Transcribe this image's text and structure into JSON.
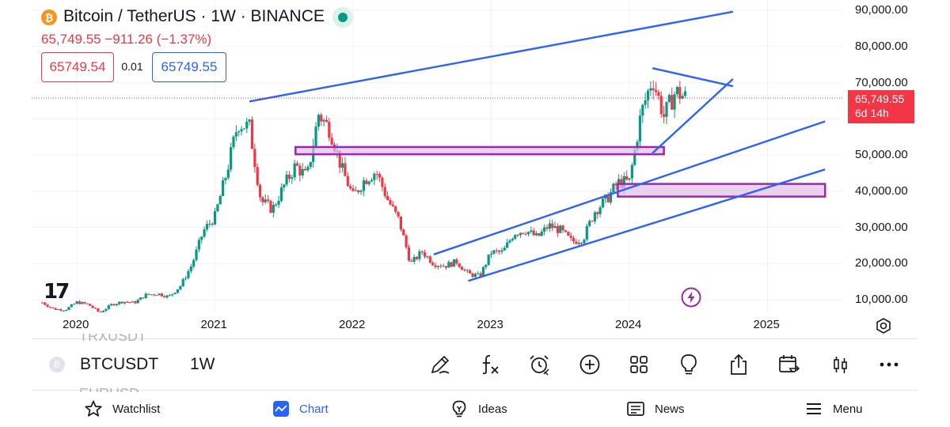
{
  "header": {
    "title": "Bitcoin / TetherUS · 1W · BINANCE",
    "price_change": "65,749.55  −911.26 (−1.37%)",
    "bid": "65749.54",
    "spread": "0.01",
    "ask": "65749.55"
  },
  "colors": {
    "up": "#089981",
    "down": "#f23645",
    "drawing": "#2962ff",
    "zone": "#9c27b0",
    "zone_fill": "#e1bee7",
    "accent": "#2962ff"
  },
  "last_price": {
    "price": "65,749.55",
    "countdown": "6d 14h"
  },
  "branding": {
    "logo": "17"
  },
  "chart_data": {
    "type": "candlestick",
    "symbol": "BTCUSDT",
    "interval": "1W",
    "y_ticks": [
      "90,000.00",
      "80,000.00",
      "70,000.00",
      "60,000.00",
      "50,000.00",
      "40,000.00",
      "30,000.00",
      "20,000.00",
      "10,000.00"
    ],
    "x_ticks": [
      "2020",
      "2021",
      "2022",
      "2023",
      "2024",
      "2025"
    ],
    "ylim": [
      6500,
      92000
    ],
    "close_series": [
      [
        "2019-10",
        9200
      ],
      [
        "2019-11",
        7400
      ],
      [
        "2019-12",
        7200
      ],
      [
        "2020-01",
        9300
      ],
      [
        "2020-02",
        8700
      ],
      [
        "2020-03",
        6400
      ],
      [
        "2020-04",
        8600
      ],
      [
        "2020-05",
        9500
      ],
      [
        "2020-06",
        9150
      ],
      [
        "2020-07",
        11300
      ],
      [
        "2020-08",
        11700
      ],
      [
        "2020-09",
        10800
      ],
      [
        "2020-10",
        13800
      ],
      [
        "2020-11",
        19700
      ],
      [
        "2020-12",
        29000
      ],
      [
        "2021-01",
        33000
      ],
      [
        "2021-02",
        45000
      ],
      [
        "2021-03",
        58800
      ],
      [
        "2021-04",
        57700
      ],
      [
        "2021-05",
        37300
      ],
      [
        "2021-06",
        35000
      ],
      [
        "2021-07",
        41500
      ],
      [
        "2021-08",
        47100
      ],
      [
        "2021-09",
        43800
      ],
      [
        "2021-10",
        61300
      ],
      [
        "2021-11",
        57000
      ],
      [
        "2021-12",
        46300
      ],
      [
        "2022-01",
        38500
      ],
      [
        "2022-02",
        43200
      ],
      [
        "2022-03",
        45500
      ],
      [
        "2022-04",
        37700
      ],
      [
        "2022-05",
        31800
      ],
      [
        "2022-06",
        19900
      ],
      [
        "2022-07",
        23300
      ],
      [
        "2022-08",
        20000
      ],
      [
        "2022-09",
        19400
      ],
      [
        "2022-10",
        20500
      ],
      [
        "2022-11",
        17100
      ],
      [
        "2022-12",
        16500
      ],
      [
        "2023-01",
        23100
      ],
      [
        "2023-02",
        23100
      ],
      [
        "2023-03",
        28500
      ],
      [
        "2023-04",
        29200
      ],
      [
        "2023-05",
        27200
      ],
      [
        "2023-06",
        30500
      ],
      [
        "2023-07",
        29200
      ],
      [
        "2023-08",
        26000
      ],
      [
        "2023-09",
        27000
      ],
      [
        "2023-10",
        34500
      ],
      [
        "2023-11",
        37700
      ],
      [
        "2023-12",
        42300
      ],
      [
        "2024-01",
        42600
      ],
      [
        "2024-02",
        61200
      ],
      [
        "2024-03",
        71300
      ],
      [
        "2024-04",
        60700
      ],
      [
        "2024-05",
        67500
      ],
      [
        "2024-06",
        65750
      ]
    ],
    "drawings": {
      "lines": [
        {
          "name": "upper-resistance-line",
          "from": [
            "2021-04",
            64800
          ],
          "to": [
            "2024-10",
            89600
          ]
        },
        {
          "name": "triangle-top-line",
          "from": [
            "2024-03",
            74000
          ],
          "to": [
            "2024-10",
            69000
          ]
        },
        {
          "name": "triangle-bottom-line",
          "from": [
            "2024-03",
            50500
          ],
          "to": [
            "2024-10",
            71000
          ]
        },
        {
          "name": "channel-upper-line",
          "from": [
            "2022-08",
            22500
          ],
          "to": [
            "2025-06",
            59300
          ]
        },
        {
          "name": "channel-lower-line",
          "from": [
            "2022-11",
            15200
          ],
          "to": [
            "2025-06",
            46000
          ]
        }
      ],
      "zones": [
        {
          "name": "resistance-zone",
          "from": "2021-08",
          "to": "2024-04",
          "low": 50200,
          "high": 52200
        },
        {
          "name": "support-zone",
          "from": "2023-12",
          "to": "2025-06",
          "low": 38500,
          "high": 42000
        }
      ],
      "last_price_line": 65749.55
    }
  },
  "bottom_toolbar": {
    "symbol": "BTCUSDT",
    "timeframe": "1W",
    "symbol_icon": "B",
    "ghost_above": "TRXUSDT",
    "ghost_below": "EURUSD",
    "tools": [
      "pencil-icon",
      "function-icon",
      "alarm-icon",
      "plus-circle-icon",
      "grid-icon",
      "lightbulb-icon",
      "share-icon",
      "calendar-compare-icon",
      "candles-icon",
      "more-icon"
    ]
  },
  "nav": {
    "watchlist": "Watchlist",
    "chart": "Chart",
    "ideas": "Ideas",
    "news": "News",
    "menu": "Menu"
  }
}
